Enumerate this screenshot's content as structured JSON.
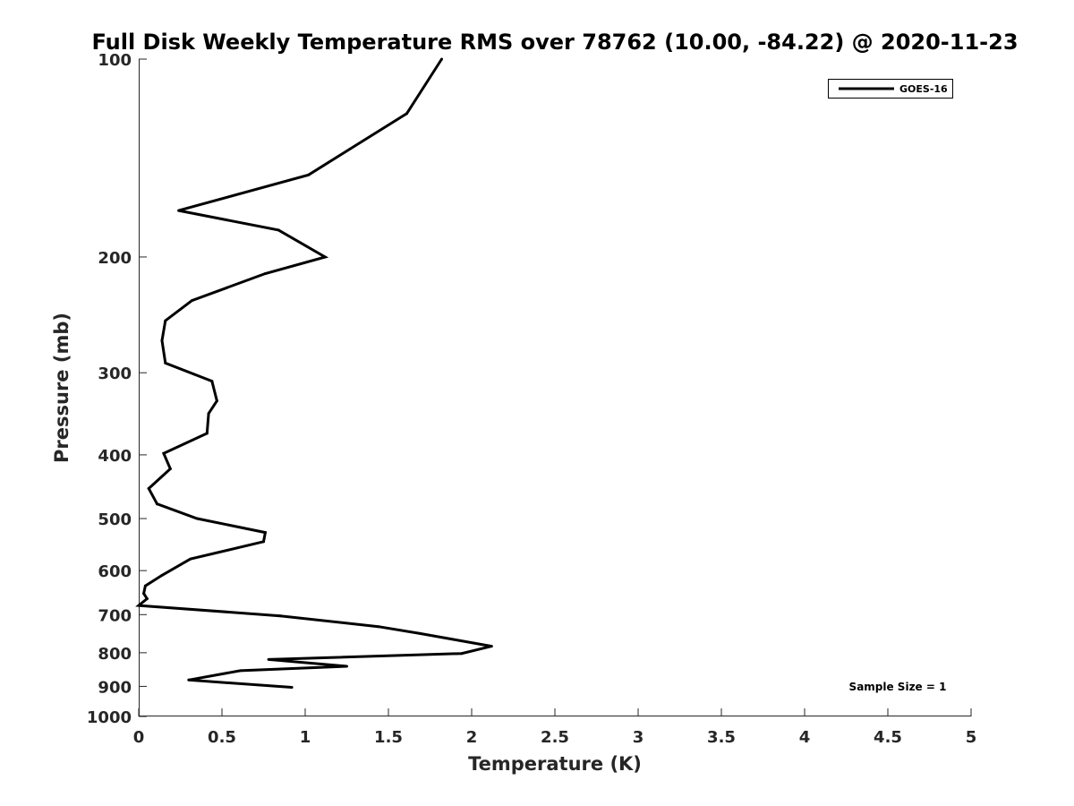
{
  "chart_data": {
    "type": "line",
    "title": "Full Disk Weekly Temperature RMS over 78762 (10.00, -84.22) @ 2020-11-23",
    "xlabel": "Temperature (K)",
    "ylabel": "Pressure (mb)",
    "xlim": [
      0,
      5
    ],
    "ylim": [
      100,
      1000
    ],
    "y_scale": "log",
    "y_reversed": true,
    "x_ticks": [
      "0",
      "0.5",
      "1",
      "1.5",
      "2",
      "2.5",
      "3",
      "3.5",
      "4",
      "4.5",
      "5"
    ],
    "y_ticks": [
      "100",
      "200",
      "300",
      "400",
      "500",
      "600",
      "700",
      "800",
      "900",
      "1000"
    ],
    "grid": false,
    "legend_position": "top-right",
    "series": [
      {
        "name": "GOES-16",
        "color": "#000000",
        "points": [
          [
            1.82,
            100
          ],
          [
            1.61,
            121
          ],
          [
            1.02,
            150
          ],
          [
            0.24,
            170
          ],
          [
            0.84,
            182
          ],
          [
            1.12,
            200
          ],
          [
            0.76,
            212
          ],
          [
            0.32,
            233
          ],
          [
            0.16,
            250
          ],
          [
            0.14,
            268
          ],
          [
            0.16,
            290
          ],
          [
            0.44,
            309
          ],
          [
            0.47,
            331
          ],
          [
            0.42,
            346
          ],
          [
            0.41,
            371
          ],
          [
            0.15,
            398
          ],
          [
            0.19,
            420
          ],
          [
            0.06,
            450
          ],
          [
            0.11,
            475
          ],
          [
            0.35,
            500
          ],
          [
            0.76,
            525
          ],
          [
            0.75,
            542
          ],
          [
            0.31,
            576
          ],
          [
            0.14,
            610
          ],
          [
            0.04,
            633
          ],
          [
            0.03,
            650
          ],
          [
            0.05,
            662
          ],
          [
            0.0,
            678
          ],
          [
            0.85,
            703
          ],
          [
            1.44,
            730
          ],
          [
            1.69,
            748
          ],
          [
            1.92,
            766
          ],
          [
            2.12,
            782
          ],
          [
            1.94,
            802
          ],
          [
            0.78,
            819
          ],
          [
            1.25,
            839
          ],
          [
            0.61,
            852
          ],
          [
            0.3,
            880
          ],
          [
            0.92,
            903
          ]
        ]
      }
    ],
    "annotations": [
      "Sample Size = 1"
    ]
  }
}
